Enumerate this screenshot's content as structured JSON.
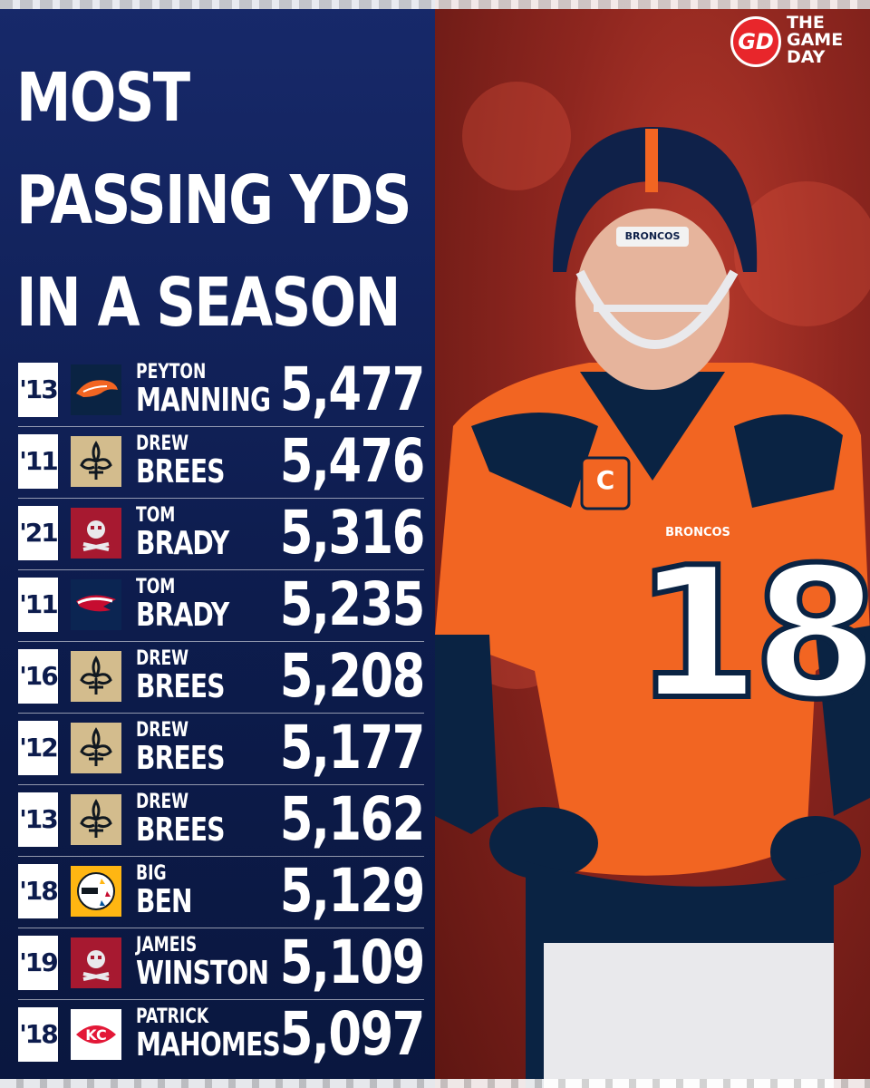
{
  "title_lines": [
    "MOST",
    "PASSING YDS",
    "IN A SEASON"
  ],
  "brand": {
    "mark": "GD",
    "line1": "THE",
    "line2": "GAME",
    "line3": "DAY"
  },
  "photo": {
    "helmet_text": "BRONCOS",
    "jersey_text": "BRONCOS",
    "jersey_number": "18",
    "captain_patch": "C"
  },
  "rows": [
    {
      "year": "'13",
      "first": "PEYTON",
      "last": "MANNING",
      "yards": "5,477",
      "team_icon": "broncos-logo-icon"
    },
    {
      "year": "'11",
      "first": "DREW",
      "last": "BREES",
      "yards": "5,476",
      "team_icon": "saints-logo-icon"
    },
    {
      "year": "'21",
      "first": "TOM",
      "last": "BRADY",
      "yards": "5,316",
      "team_icon": "buccaneers-logo-icon"
    },
    {
      "year": "'11",
      "first": "TOM",
      "last": "BRADY",
      "yards": "5,235",
      "team_icon": "patriots-logo-icon"
    },
    {
      "year": "'16",
      "first": "DREW",
      "last": "BREES",
      "yards": "5,208",
      "team_icon": "saints-logo-icon"
    },
    {
      "year": "'12",
      "first": "DREW",
      "last": "BREES",
      "yards": "5,177",
      "team_icon": "saints-logo-icon"
    },
    {
      "year": "'13",
      "first": "DREW",
      "last": "BREES",
      "yards": "5,162",
      "team_icon": "saints-logo-icon"
    },
    {
      "year": "'18",
      "first": "BIG",
      "last": "BEN",
      "yards": "5,129",
      "team_icon": "steelers-logo-icon"
    },
    {
      "year": "'19",
      "first": "JAMEIS",
      "last": "WINSTON",
      "yards": "5,109",
      "team_icon": "buccaneers-logo-icon"
    },
    {
      "year": "'18",
      "first": "PATRICK",
      "last": "MAHOMES",
      "yards": "5,097",
      "team_icon": "chiefs-logo-icon"
    }
  ],
  "colors": {
    "panel_navy": "#0d1c4d",
    "broncos_orange": "#f26522",
    "broncos_navy": "#0a2343",
    "saints_gold": "#d3bc8d",
    "bucs_red": "#a71930",
    "patriots_navy": "#0b2552",
    "steelers_gold": "#ffb612",
    "chiefs_red": "#e31837",
    "brand_red": "#e8262b"
  }
}
